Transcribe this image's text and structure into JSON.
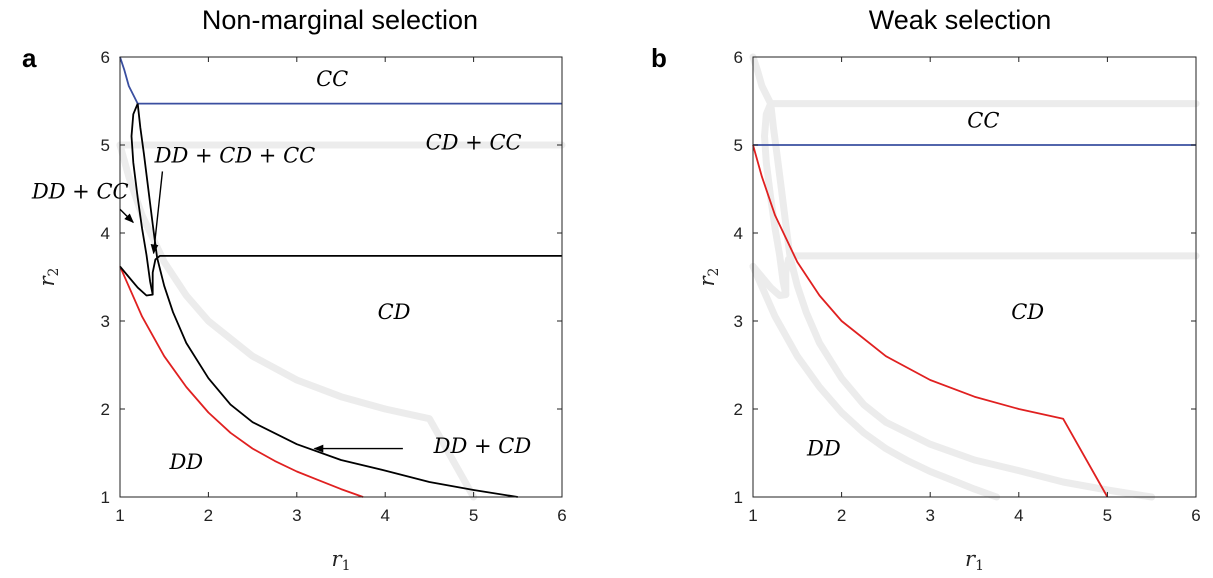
{
  "chart_data": [
    {
      "type": "line",
      "panel_label": "a",
      "title": "Non-marginal selection",
      "xlabel": "r",
      "xlabel_sub": "1",
      "ylabel": "r",
      "ylabel_sub": "2",
      "xlim": [
        1,
        6
      ],
      "ylim": [
        1,
        6
      ],
      "xticks": [
        "1",
        "2",
        "3",
        "4",
        "5",
        "6"
      ],
      "yticks": [
        "1",
        "2",
        "3",
        "4",
        "5",
        "6"
      ],
      "series": [
        {
          "color": "#3a4fa0",
          "points": [
            [
              1.0,
              6.0
            ],
            [
              1.05,
              5.85
            ],
            [
              1.1,
              5.67
            ],
            [
              1.2,
              5.47
            ],
            [
              6.0,
              5.47
            ]
          ]
        },
        {
          "color": "#e02020",
          "points": [
            [
              1.0,
              3.62
            ],
            [
              1.25,
              3.05
            ],
            [
              1.5,
              2.6
            ],
            [
              1.75,
              2.25
            ],
            [
              2.0,
              1.96
            ],
            [
              2.25,
              1.73
            ],
            [
              2.5,
              1.55
            ],
            [
              2.75,
              1.41
            ],
            [
              3.0,
              1.29
            ],
            [
              3.25,
              1.19
            ],
            [
              3.5,
              1.09
            ],
            [
              3.75,
              1.0
            ]
          ]
        },
        {
          "color": "#000000",
          "points": [
            [
              1.2,
              5.47
            ],
            [
              1.23,
              5.2
            ],
            [
              1.27,
              4.9
            ],
            [
              1.32,
              4.5
            ],
            [
              1.37,
              4.1
            ],
            [
              1.42,
              3.72
            ],
            [
              1.5,
              3.4
            ],
            [
              1.6,
              3.1
            ],
            [
              1.75,
              2.75
            ],
            [
              2.0,
              2.35
            ],
            [
              2.25,
              2.05
            ],
            [
              2.5,
              1.85
            ],
            [
              3.0,
              1.6
            ],
            [
              3.5,
              1.42
            ],
            [
              4.0,
              1.3
            ],
            [
              4.5,
              1.17
            ],
            [
              5.0,
              1.08
            ],
            [
              5.5,
              1.0
            ]
          ]
        },
        {
          "color": "#000000",
          "points": [
            [
              1.0,
              3.62
            ],
            [
              1.1,
              3.5
            ],
            [
              1.2,
              3.38
            ],
            [
              1.3,
              3.29
            ],
            [
              1.37,
              3.3
            ],
            [
              1.37,
              3.55
            ],
            [
              1.4,
              3.7
            ],
            [
              1.45,
              3.74
            ],
            [
              6.0,
              3.74
            ]
          ]
        },
        {
          "color": "#000000",
          "points": [
            [
              1.2,
              5.47
            ],
            [
              1.15,
              5.35
            ],
            [
              1.13,
              5.1
            ],
            [
              1.15,
              4.8
            ],
            [
              1.2,
              4.4
            ],
            [
              1.25,
              4.05
            ],
            [
              1.3,
              3.75
            ],
            [
              1.34,
              3.45
            ],
            [
              1.37,
              3.3
            ]
          ]
        }
      ],
      "regions": [
        {
          "text": "CC",
          "x": 3.4,
          "y": 5.75
        },
        {
          "text": "CD + CC",
          "x": 5.0,
          "y": 5.03
        },
        {
          "text": "DD + CD + CC",
          "x": 2.3,
          "y": 4.88
        },
        {
          "text": "DD + CC",
          "x": 0.55,
          "y": 4.47
        },
        {
          "text": "CD",
          "x": 4.1,
          "y": 3.1
        },
        {
          "text": "DD + CD",
          "x": 5.1,
          "y": 1.58
        },
        {
          "text": "DD",
          "x": 1.75,
          "y": 1.4
        }
      ],
      "annotations": [
        {
          "from": [
            1.0,
            4.27
          ],
          "to": [
            1.15,
            4.12
          ]
        },
        {
          "from": [
            1.48,
            4.7
          ],
          "to": [
            1.38,
            3.77
          ]
        },
        {
          "from": [
            4.2,
            1.55
          ],
          "to": [
            3.2,
            1.55
          ]
        }
      ]
    },
    {
      "type": "line",
      "panel_label": "b",
      "title": "Weak selection",
      "xlabel": "r",
      "xlabel_sub": "1",
      "ylabel": "r",
      "ylabel_sub": "2",
      "xlim": [
        1,
        6
      ],
      "ylim": [
        1,
        6
      ],
      "xticks": [
        "1",
        "2",
        "3",
        "4",
        "5",
        "6"
      ],
      "yticks": [
        "1",
        "2",
        "3",
        "4",
        "5",
        "6"
      ],
      "series": [
        {
          "color": "#3a4fa0",
          "points": [
            [
              1.0,
              5.0
            ],
            [
              6.0,
              5.0
            ]
          ]
        },
        {
          "color": "#e02020",
          "points": [
            [
              1.0,
              5.0
            ],
            [
              1.1,
              4.64
            ],
            [
              1.25,
              4.2
            ],
            [
              1.5,
              3.67
            ],
            [
              1.75,
              3.29
            ],
            [
              2.0,
              3.0
            ],
            [
              2.5,
              2.6
            ],
            [
              3.0,
              2.33
            ],
            [
              3.5,
              2.14
            ],
            [
              4.0,
              2.0
            ],
            [
              4.5,
              1.89
            ],
            [
              5.0,
              1.0
            ]
          ]
        }
      ],
      "regions": [
        {
          "text": "CC",
          "x": 3.6,
          "y": 5.28
        },
        {
          "text": "CD",
          "x": 4.1,
          "y": 3.1
        },
        {
          "text": "DD",
          "x": 1.8,
          "y": 1.55
        }
      ],
      "annotations": []
    }
  ],
  "colors": {
    "blue": "#3a4fa0",
    "red": "#e02020",
    "black": "#000000",
    "ghost": "#ececec"
  }
}
